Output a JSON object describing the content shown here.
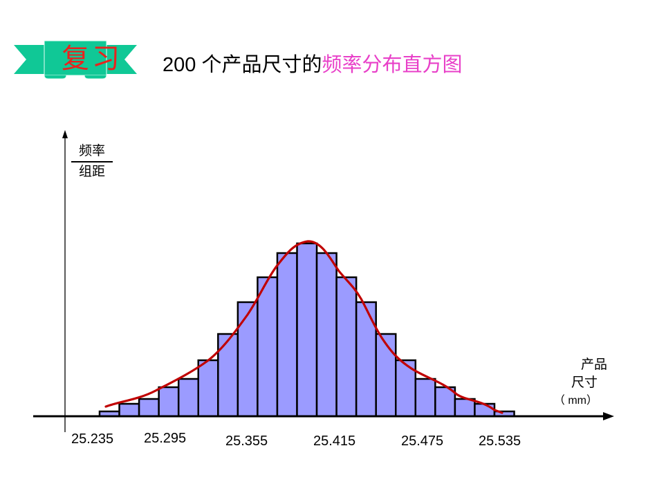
{
  "banner": {
    "label": "复习",
    "bg_color": "#10c896",
    "text_color": "#e8231d"
  },
  "header": {
    "title_prefix": "200 个产品尺寸的",
    "title_accent": "频率分布直方图",
    "accent_color": "#e83fc8"
  },
  "axes": {
    "y_label_top": "频率",
    "y_label_bottom": "组距",
    "x_label_line1": "产品",
    "x_label_line2": "尺寸",
    "x_label_unit": "（ mm）"
  },
  "x_ticks": [
    "25.235",
    "25.295",
    "25.355",
    "25.415",
    "25.475",
    "25.535"
  ],
  "chart_data": {
    "type": "bar",
    "title": "200 个产品尺寸的频率分布直方图",
    "xlabel": "产品尺寸（mm）",
    "ylabel": "频率/组距",
    "bar_fill": "#9b9bff",
    "bar_stroke": "#000000",
    "curve_color": "#c00000",
    "x_tick_labels": [
      "25.235",
      "25.295",
      "25.355",
      "25.415",
      "25.475",
      "25.535"
    ],
    "x_range": [
      25.235,
      25.55
    ],
    "bin_width": 0.015,
    "categories": [
      "25.235",
      "25.250",
      "25.265",
      "25.280",
      "25.295",
      "25.310",
      "25.325",
      "25.340",
      "25.355",
      "25.370",
      "25.385",
      "25.400",
      "25.415",
      "25.430",
      "25.445",
      "25.460",
      "25.475",
      "25.490",
      "25.505",
      "25.520",
      "25.535"
    ],
    "values": [
      7,
      18,
      25,
      42,
      54,
      81,
      119,
      165,
      201,
      236,
      250,
      236,
      201,
      165,
      119,
      81,
      54,
      42,
      25,
      18,
      7
    ],
    "values_note": "relative bar heights in pixels above the x-axis (no y tick scale shown)",
    "curve": "smooth red density curve overlaying bar tops",
    "grid": false,
    "legend": null
  }
}
